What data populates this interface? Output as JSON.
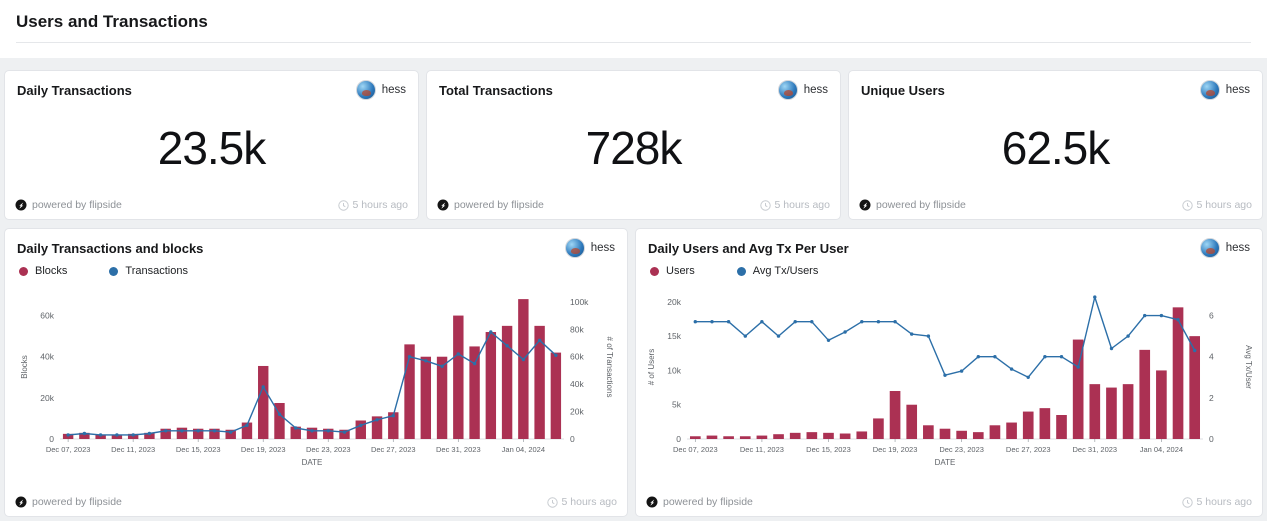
{
  "page": {
    "title": "Users and Transactions"
  },
  "author": "hess",
  "footer": {
    "powered_by": "powered by flipside",
    "updated": "5 hours ago"
  },
  "kpis": [
    {
      "title": "Daily Transactions",
      "value": "23.5k"
    },
    {
      "title": "Total Transactions",
      "value": "728k"
    },
    {
      "title": "Unique Users",
      "value": "62.5k"
    }
  ],
  "colors": {
    "bar": "#ab3153",
    "line": "#2c6fa8"
  },
  "chart_data": [
    {
      "type": "bar",
      "title": "Daily Transactions and blocks",
      "xlabel": "DATE",
      "categories": [
        "Dec 07, 2023",
        "Dec 08, 2023",
        "Dec 09, 2023",
        "Dec 10, 2023",
        "Dec 11, 2023",
        "Dec 12, 2023",
        "Dec 13, 2023",
        "Dec 14, 2023",
        "Dec 15, 2023",
        "Dec 16, 2023",
        "Dec 17, 2023",
        "Dec 18, 2023",
        "Dec 19, 2023",
        "Dec 20, 2023",
        "Dec 21, 2023",
        "Dec 22, 2023",
        "Dec 23, 2023",
        "Dec 24, 2023",
        "Dec 25, 2023",
        "Dec 26, 2023",
        "Dec 27, 2023",
        "Dec 28, 2023",
        "Dec 29, 2023",
        "Dec 30, 2023",
        "Dec 31, 2023",
        "Jan 01, 2024",
        "Jan 02, 2024",
        "Jan 03, 2024",
        "Jan 04, 2024",
        "Jan 05, 2024",
        "Jan 06, 2024"
      ],
      "x_tick_indices": [
        0,
        4,
        8,
        12,
        16,
        20,
        24,
        28
      ],
      "series": [
        {
          "name": "Blocks",
          "type": "bar",
          "axis": "left",
          "color": "#ab3153",
          "values": [
            2500,
            3000,
            2000,
            2000,
            2500,
            3000,
            5000,
            5500,
            5000,
            5000,
            4500,
            8000,
            35500,
            17500,
            6000,
            5500,
            5000,
            4500,
            9000,
            11000,
            13000,
            46000,
            40000,
            40000,
            60000,
            45000,
            52000,
            55000,
            68000,
            55000,
            42000
          ]
        },
        {
          "name": "Transactions",
          "type": "line",
          "axis": "right",
          "color": "#2c6fa8",
          "values": [
            3000,
            4000,
            3000,
            3000,
            3000,
            4000,
            6000,
            6000,
            6000,
            6000,
            5000,
            10000,
            38000,
            18000,
            8000,
            6000,
            6000,
            5000,
            10000,
            14000,
            17000,
            60000,
            57000,
            53000,
            62000,
            55000,
            78000,
            68000,
            58000,
            72000,
            61000
          ]
        }
      ],
      "left_axis": {
        "label": "Blocks",
        "ticks": [
          0,
          20000,
          40000,
          60000
        ],
        "max": 70000
      },
      "right_axis": {
        "label": "# of Transactions",
        "ticks": [
          0,
          20000,
          40000,
          60000,
          80000,
          100000
        ],
        "max": 105000
      },
      "legend_position": "top-left",
      "grid": false
    },
    {
      "type": "bar",
      "title": "Daily Users and Avg Tx Per User",
      "xlabel": "DATE",
      "categories": [
        "Dec 07, 2023",
        "Dec 08, 2023",
        "Dec 09, 2023",
        "Dec 10, 2023",
        "Dec 11, 2023",
        "Dec 12, 2023",
        "Dec 13, 2023",
        "Dec 14, 2023",
        "Dec 15, 2023",
        "Dec 16, 2023",
        "Dec 17, 2023",
        "Dec 18, 2023",
        "Dec 19, 2023",
        "Dec 20, 2023",
        "Dec 21, 2023",
        "Dec 22, 2023",
        "Dec 23, 2023",
        "Dec 24, 2023",
        "Dec 25, 2023",
        "Dec 26, 2023",
        "Dec 27, 2023",
        "Dec 28, 2023",
        "Dec 29, 2023",
        "Dec 30, 2023",
        "Dec 31, 2023",
        "Jan 01, 2024",
        "Jan 02, 2024",
        "Jan 03, 2024",
        "Jan 04, 2024",
        "Jan 05, 2024",
        "Jan 06, 2024"
      ],
      "x_tick_indices": [
        0,
        4,
        8,
        12,
        16,
        20,
        24,
        28
      ],
      "series": [
        {
          "name": "Users",
          "type": "bar",
          "axis": "left",
          "color": "#ab3153",
          "values": [
            400,
            500,
            400,
            400,
            500,
            700,
            900,
            1000,
            900,
            800,
            1100,
            3000,
            7000,
            5000,
            2000,
            1500,
            1200,
            1000,
            2000,
            2400,
            4000,
            4500,
            3500,
            14500,
            8000,
            7500,
            8000,
            13000,
            10000,
            19200,
            15000
          ]
        },
        {
          "name": "Avg Tx/Users",
          "type": "line",
          "axis": "right",
          "color": "#2c6fa8",
          "values": [
            5.7,
            5.7,
            5.7,
            5.0,
            5.7,
            5.0,
            5.7,
            5.7,
            4.8,
            5.2,
            5.7,
            5.7,
            5.7,
            5.1,
            5.0,
            3.1,
            3.3,
            4.0,
            4.0,
            3.4,
            3.0,
            4.0,
            4.0,
            3.5,
            6.9,
            4.4,
            5.0,
            6.0,
            6.0,
            5.8,
            4.3
          ]
        }
      ],
      "left_axis": {
        "label": "# of Users",
        "ticks": [
          0,
          5000,
          10000,
          15000,
          20000
        ],
        "max": 21000
      },
      "right_axis": {
        "label": "Avg Tx/User",
        "ticks": [
          0,
          2,
          4,
          6
        ],
        "max": 7
      },
      "legend_position": "top-left",
      "grid": false
    }
  ]
}
